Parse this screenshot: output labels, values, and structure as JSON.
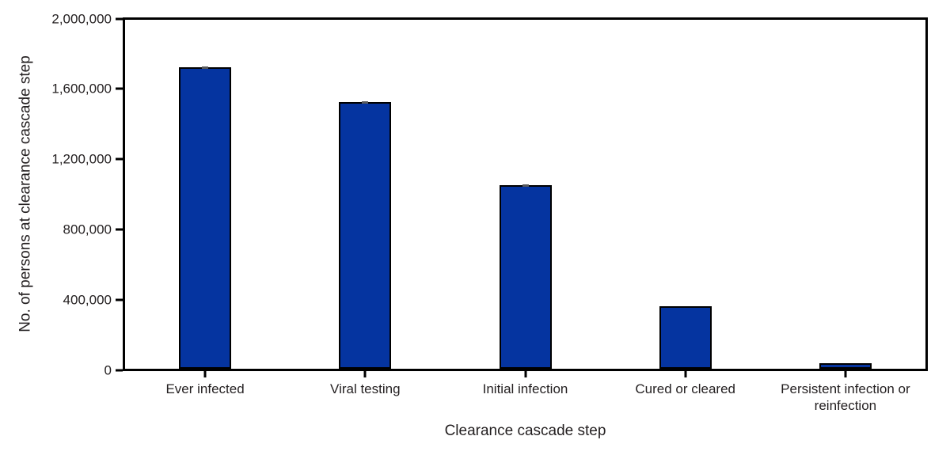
{
  "figure": {
    "background": "#ffffff",
    "text_color": "#231f20",
    "axis_color": "#000000"
  },
  "chart_data": {
    "type": "bar",
    "title": "",
    "xlabel": "Clearance cascade step",
    "ylabel": "No. of persons at clearance cascade step",
    "categories": [
      "Ever infected",
      "Viral testing",
      "Initial infection",
      "Cured or cleared",
      "Persistent infection or\nreinfection"
    ],
    "values": [
      1730000,
      1530000,
      1050000,
      360000,
      30000
    ],
    "error_caps": [
      true,
      true,
      true,
      false,
      false
    ],
    "ylim": [
      0,
      2000000
    ],
    "y_ticks": [
      0,
      400000,
      800000,
      1200000,
      1600000,
      2000000
    ],
    "y_tick_labels": [
      "0",
      "400,000",
      "800,000",
      "1,200,000",
      "1,600,000",
      "2,000,000"
    ],
    "grid": false,
    "legend": false,
    "bar_color": "#0534A0",
    "bar_border_color": "#000000",
    "error_cap_color": "#58595B"
  }
}
